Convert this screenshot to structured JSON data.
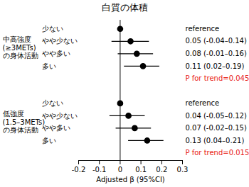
{
  "chart_data": {
    "type": "forest",
    "title": "白質の体積",
    "xlabel": "Adjusted β (95%CI)",
    "xlim": [
      -0.2,
      0.3
    ],
    "xticks": [
      -0.2,
      -0.1,
      0,
      0.1,
      0.2,
      0.3
    ],
    "reference_value": 0,
    "color": "#000000",
    "groups": [
      {
        "name_lines": [
          "中高強度",
          "(≥3METs)",
          "の身体活動"
        ],
        "categories": [
          "少ない",
          "やや少ない",
          "やや多い",
          "多い"
        ],
        "values": [
          0,
          0.05,
          0.08,
          0.11
        ],
        "lower": [
          null,
          -0.04,
          -0.01,
          0.02
        ],
        "upper": [
          null,
          0.14,
          0.16,
          0.19
        ],
        "value_labels": [
          "reference",
          "0.05 (-0.04–0.14)",
          "0.08 (-0.01–0.16)",
          "0.11 (0.02–0.19)"
        ],
        "annotation": {
          "text": "P for trend=0.045",
          "color": "#e8211a"
        }
      },
      {
        "name_lines": [
          "低強度",
          "(1.5–3METs)",
          "の身体活動"
        ],
        "categories": [
          "少ない",
          "やや少ない",
          "やや多い",
          "多い"
        ],
        "values": [
          0,
          0.04,
          0.07,
          0.13
        ],
        "lower": [
          null,
          -0.05,
          -0.02,
          0.04
        ],
        "upper": [
          null,
          0.12,
          0.15,
          0.21
        ],
        "value_labels": [
          "reference",
          "0.04 (-0.05–0.12)",
          "0.07 (-0.02–0.15)",
          "0.13 (0.04–0.21)"
        ],
        "annotation": {
          "text": "P for trend=0.015",
          "color": "#e8211a"
        }
      }
    ]
  }
}
